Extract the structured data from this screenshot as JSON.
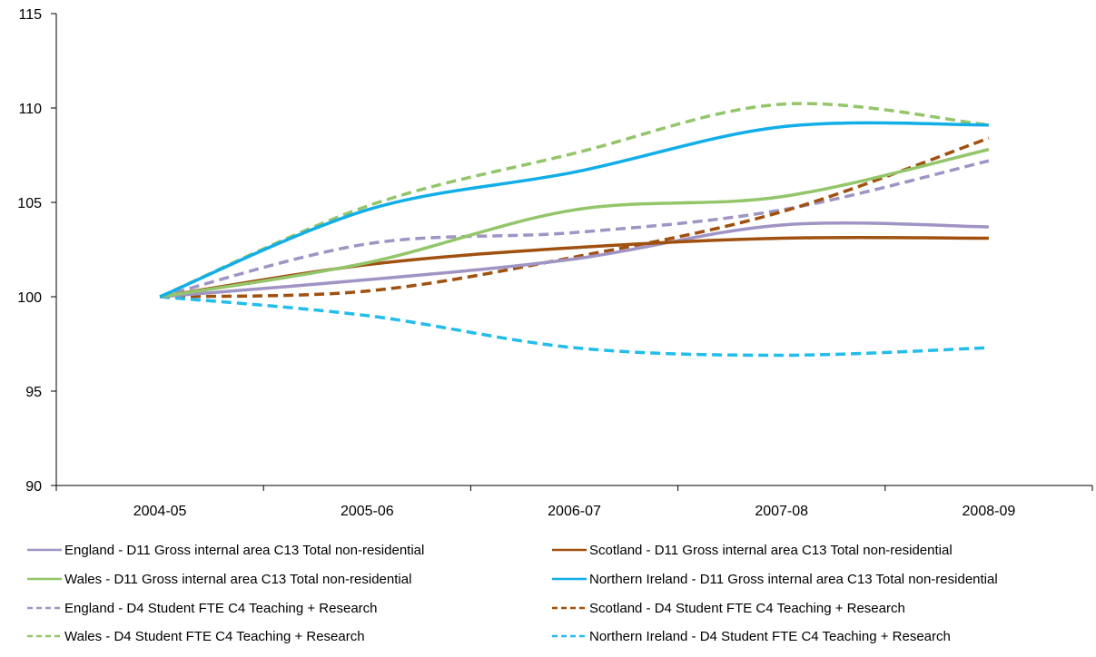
{
  "chart_data": {
    "type": "line",
    "title": "",
    "xlabel": "",
    "ylabel": "",
    "categories": [
      "2004-05",
      "2005-06",
      "2006-07",
      "2007-08",
      "2008-09"
    ],
    "ylim": [
      90,
      115
    ],
    "yticks": [
      90,
      95,
      100,
      105,
      110,
      115
    ],
    "grid": false,
    "legend_position": "bottom",
    "series": [
      {
        "name": "England - D11 Gross internal area C13 Total non-residential",
        "values": [
          100,
          100.9,
          102.0,
          103.8,
          103.7
        ],
        "color": "#A094C4",
        "dash": "solid"
      },
      {
        "name": "Scotland - D11 Gross internal area C13 Total non-residential",
        "values": [
          100,
          101.7,
          102.6,
          103.1,
          103.1
        ],
        "color": "#A0500F",
        "dash": "solid"
      },
      {
        "name": "Wales - D11 Gross internal area C13 Total non-residential",
        "values": [
          100,
          101.8,
          104.6,
          105.3,
          107.8
        ],
        "color": "#93C66A",
        "dash": "solid"
      },
      {
        "name": "Northern Ireland - D11 Gross internal area C13 Total non-residential",
        "values": [
          100,
          104.6,
          106.6,
          109.0,
          109.1
        ],
        "color": "#11AEE8",
        "dash": "solid"
      },
      {
        "name": "England - D4 Student FTE C4 Teaching + Research",
        "values": [
          100,
          102.8,
          103.4,
          104.6,
          107.2
        ],
        "color": "#A094C4",
        "dash": "dashed"
      },
      {
        "name": "Scotland - D4 Student FTE C4 Teaching + Research",
        "values": [
          100,
          100.3,
          102.1,
          104.5,
          108.4
        ],
        "color": "#A0500F",
        "dash": "dashed"
      },
      {
        "name": "Wales - D4 Student FTE C4 Teaching + Research",
        "values": [
          100,
          104.8,
          107.6,
          110.2,
          109.1
        ],
        "color": "#93C66A",
        "dash": "dashed"
      },
      {
        "name": "Northern Ireland - D4 Student FTE C4 Teaching + Research",
        "values": [
          100,
          99.0,
          97.3,
          96.9,
          97.3
        ],
        "color": "#22BDEB",
        "dash": "dashed"
      }
    ]
  }
}
